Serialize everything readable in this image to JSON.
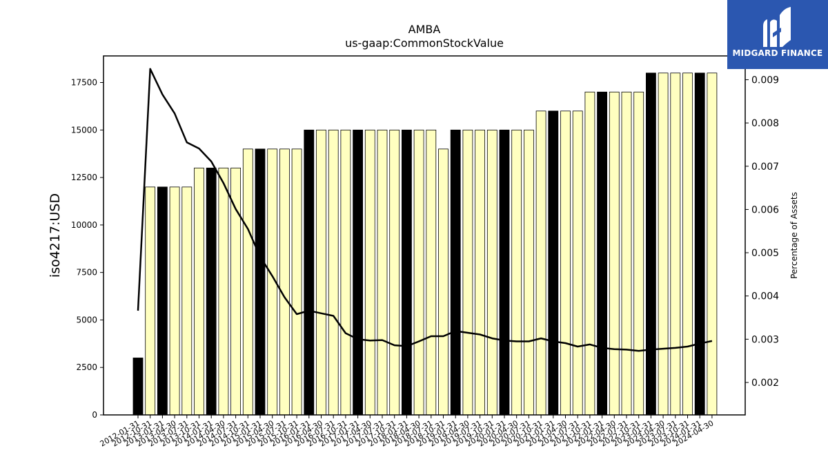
{
  "chart_data": {
    "type": "bar",
    "title": "AMBA",
    "subtitle": "us-gaap:CommonStockValue",
    "ylabel": "iso4217:USD",
    "y2label": "Percentage of Assets",
    "ylim": [
      0,
      18900
    ],
    "y2lim": [
      0.00125,
      0.00955
    ],
    "yticks": [
      0,
      2500,
      5000,
      7500,
      10000,
      12500,
      15000,
      17500
    ],
    "y2ticks": [
      "0.002",
      "0.003",
      "0.004",
      "0.005",
      "0.006",
      "0.007",
      "0.008",
      "0.009"
    ],
    "y2tick_values": [
      0.002,
      0.003,
      0.004,
      0.005,
      0.006,
      0.007,
      0.008,
      0.009
    ],
    "categories": [
      "2012-01-31",
      "2012-10-31",
      "2013-01-31",
      "2013-04-30",
      "2013-07-31",
      "2013-10-31",
      "2014-01-31",
      "2014-04-30",
      "2014-07-31",
      "2014-10-31",
      "2015-01-31",
      "2015-04-30",
      "2015-07-31",
      "2015-10-31",
      "2016-01-31",
      "2016-04-30",
      "2016-07-31",
      "2016-10-31",
      "2017-01-31",
      "2017-04-30",
      "2017-07-31",
      "2017-10-31",
      "2018-01-31",
      "2018-04-30",
      "2018-07-31",
      "2018-10-31",
      "2019-01-31",
      "2019-04-30",
      "2019-07-31",
      "2019-10-31",
      "2020-01-31",
      "2020-04-30",
      "2020-07-31",
      "2020-10-31",
      "2021-01-31",
      "2021-04-30",
      "2021-07-31",
      "2021-10-31",
      "2022-01-31",
      "2022-04-30",
      "2022-07-31",
      "2022-10-31",
      "2023-01-31",
      "2023-04-30",
      "2023-07-31",
      "2023-10-31",
      "2024-01-31",
      "2024-04-30"
    ],
    "series": [
      {
        "type": "bar",
        "values": [
          3000,
          12000,
          12000,
          12000,
          12000,
          13000,
          13000,
          13000,
          13000,
          14000,
          14000,
          14000,
          14000,
          14000,
          15000,
          15000,
          15000,
          15000,
          15000,
          15000,
          15000,
          15000,
          15000,
          15000,
          15000,
          14000,
          15000,
          15000,
          15000,
          15000,
          15000,
          15000,
          15000,
          16000,
          16000,
          16000,
          16000,
          17000,
          17000,
          17000,
          17000,
          17000,
          18000,
          18000,
          18000,
          18000,
          18000,
          18000
        ],
        "highlight": [
          true,
          false,
          true,
          false,
          false,
          false,
          true,
          false,
          false,
          false,
          true,
          false,
          false,
          false,
          true,
          false,
          false,
          false,
          true,
          false,
          false,
          false,
          true,
          false,
          false,
          false,
          true,
          false,
          false,
          false,
          true,
          false,
          false,
          false,
          true,
          false,
          false,
          false,
          true,
          false,
          false,
          false,
          true,
          false,
          false,
          false,
          true,
          false
        ],
        "highlight_color": "#000000",
        "color": "#ffffc0"
      },
      {
        "type": "line",
        "axis": "right",
        "values": [
          0.00366,
          0.00925,
          0.00866,
          0.00822,
          0.00755,
          0.00741,
          0.00711,
          0.00661,
          0.00601,
          0.00555,
          0.00491,
          0.00446,
          0.00397,
          0.00358,
          0.00366,
          0.0036,
          0.00354,
          0.00314,
          0.003,
          0.00297,
          0.00298,
          0.00286,
          0.00284,
          0.00295,
          0.00307,
          0.00307,
          0.00319,
          0.00315,
          0.00311,
          0.00302,
          0.00297,
          0.00295,
          0.00295,
          0.00302,
          0.00295,
          0.00291,
          0.00283,
          0.00288,
          0.0028,
          0.00277,
          0.00276,
          0.00273,
          0.00276,
          0.00278,
          0.0028,
          0.00283,
          0.0029,
          0.00296
        ],
        "color": "#000000"
      }
    ],
    "grid": false,
    "legend": "none"
  },
  "logo": {
    "text": "MIDGARD FINANCE",
    "color": "#2b57b0"
  }
}
